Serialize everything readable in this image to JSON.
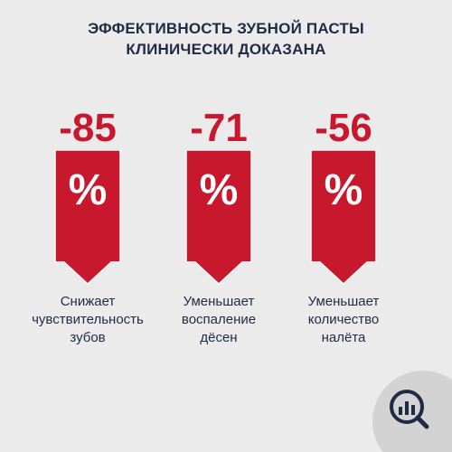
{
  "title": {
    "line1": "ЭФФЕКТИВНОСТЬ ЗУБНОЙ ПАСТЫ",
    "line2": "КЛИНИЧЕСКИ ДОКАЗАНА"
  },
  "stats": [
    {
      "value": "-85",
      "unit": "%",
      "caption": [
        "Снижает",
        "чувствительность",
        "зубов"
      ]
    },
    {
      "value": "-71",
      "unit": "%",
      "caption": [
        "Уменьшает",
        "воспаление",
        "дёсен"
      ]
    },
    {
      "value": "-56",
      "unit": "%",
      "caption": [
        "Уменьшает",
        "количество",
        "налёта"
      ]
    }
  ],
  "colors": {
    "accent": "#c8182e",
    "text": "#1f2a44",
    "background": "#ebebeb",
    "badge": "#d3d3d3"
  },
  "icons": {
    "badge": "search-chart-icon"
  }
}
